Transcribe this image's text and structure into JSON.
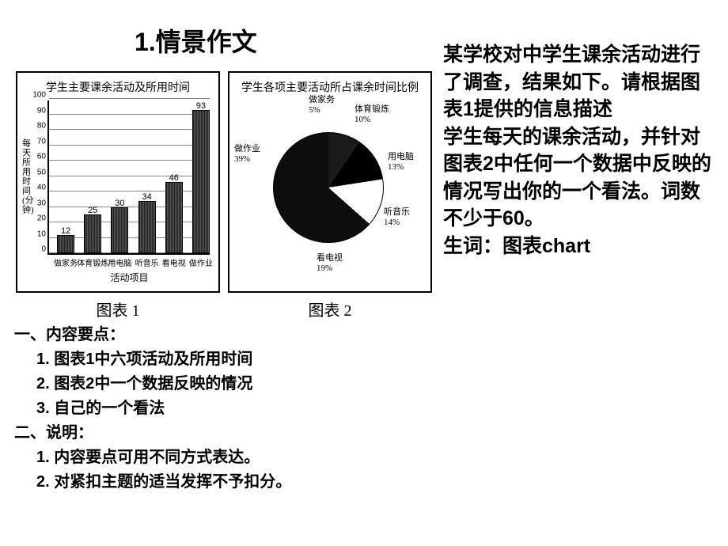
{
  "title": "1.情景作文",
  "chart1": {
    "title": "学生主要课余活动及所用时间",
    "caption": "图表 1",
    "xlabel": "活动项目",
    "ylabel": "每天所用时间(分钟)",
    "ylim": [
      0,
      100
    ],
    "ytick_step": 10,
    "categories": [
      "做家务",
      "体育锻炼",
      "用电脑",
      "听音乐",
      "看电视",
      "做作业"
    ],
    "values": [
      12,
      25,
      30,
      34,
      46,
      93
    ],
    "bar_color": "#333333",
    "grid_color": "#888888",
    "label_fontsize": 11
  },
  "chart2": {
    "title": "学生各项主要活动所占课余时间比例",
    "caption": "图表 2",
    "slices": [
      {
        "label": "做作业",
        "pct": 39,
        "color": "#bfbfbf"
      },
      {
        "label": "做家务",
        "pct": 5,
        "color": "#2b2b2b"
      },
      {
        "label": "体育锻炼",
        "pct": 10,
        "color": "#1a1a1a"
      },
      {
        "label": "用电脑",
        "pct": 13,
        "color": "#000000"
      },
      {
        "label": "听音乐",
        "pct": 14,
        "color": "#ffffff"
      },
      {
        "label": "看电视",
        "pct": 19,
        "color": "#0d0d0d"
      }
    ],
    "label_fontsize": 11
  },
  "right_text": {
    "p1": "某学校对中学生课余活动进行了调查，结果如下。请根据图表1提供的信息描述",
    "p2": "学生每天的课余活动，并针对图表2中任何一个数据中反映的情况写出你的一个看法。词数不少于60。",
    "p3": "生词：图表chart"
  },
  "section1": {
    "head": "一、内容要点：",
    "items": [
      "1.  图表1中六项活动及所用时间",
      "2.  图表2中一个数据反映的情况",
      "3.  自己的一个看法"
    ]
  },
  "section2": {
    "head": "二、说明：",
    "items": [
      "1.  内容要点可用不同方式表达。",
      "2.  对紧扣主题的适当发挥不予扣分。"
    ]
  }
}
